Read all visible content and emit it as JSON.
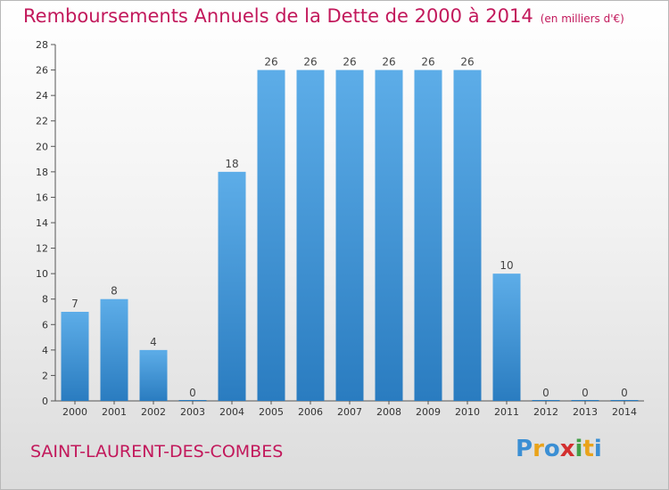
{
  "header": {
    "title": "Remboursements Annuels de la Dette de 2000 à 2014",
    "subtitle": "(en milliers d'€)"
  },
  "footer": {
    "commune": "SAINT-LAURENT-DES-COMBES",
    "brand": {
      "letters": [
        "P",
        "r",
        "o",
        "x",
        "i",
        "t",
        "i"
      ],
      "colors": [
        "#3b8fd4",
        "#e9a31a",
        "#3b8fd4",
        "#d32f2f",
        "#43a047",
        "#e9a31a",
        "#3b8fd4"
      ]
    }
  },
  "chart_data": {
    "type": "bar",
    "title": "Remboursements Annuels de la Dette de 2000 à 2014",
    "subtitle": "(en milliers d'€)",
    "categories": [
      "2000",
      "2001",
      "2002",
      "2003",
      "2004",
      "2005",
      "2006",
      "2007",
      "2008",
      "2009",
      "2010",
      "2011",
      "2012",
      "2013",
      "2014"
    ],
    "values": [
      7,
      8,
      4,
      0,
      18,
      26,
      26,
      26,
      26,
      26,
      26,
      10,
      0,
      0,
      0
    ],
    "ylim": [
      0,
      28
    ],
    "yticks": [
      0,
      2,
      4,
      6,
      8,
      10,
      12,
      14,
      16,
      18,
      20,
      22,
      24,
      26,
      28
    ],
    "grid": false,
    "bar_color_top": "#5dade8",
    "bar_color_bottom": "#2a7cc0",
    "legend": "none"
  }
}
